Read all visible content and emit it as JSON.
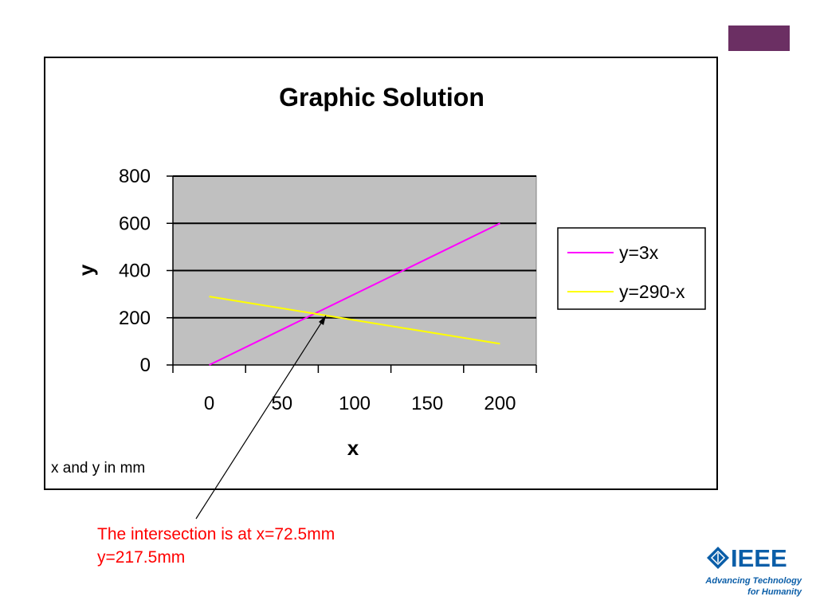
{
  "colors": {
    "accent": "#6b2f63",
    "plot_bg": "#c0c0c0",
    "annotation": "#ff0000",
    "ieee_blue": "#0b5ea8"
  },
  "chart_data": {
    "type": "line",
    "title": "Graphic Solution",
    "xlabel": "x",
    "ylabel": "y",
    "x_tick_labels": [
      "0",
      "50",
      "100",
      "150",
      "200"
    ],
    "y_ticks": [
      0,
      200,
      400,
      600,
      800
    ],
    "ylim": [
      0,
      800
    ],
    "x": [
      0,
      50,
      100,
      150,
      200
    ],
    "series": [
      {
        "name": "y=3x",
        "color": "#ff00ff",
        "values": [
          0,
          150,
          300,
          450,
          600
        ]
      },
      {
        "name": "y=290-x",
        "color": "#ffff00",
        "values": [
          290,
          240,
          190,
          140,
          90
        ]
      }
    ],
    "grid": true,
    "legend_position": "right",
    "note": "x and y in mm"
  },
  "annotation": {
    "line1": "The intersection is at x=72.5mm",
    "line2": "y=217.5mm"
  },
  "logo": {
    "name": "IEEE",
    "tagline_line1": "Advancing Technology",
    "tagline_line2": "for Humanity"
  }
}
